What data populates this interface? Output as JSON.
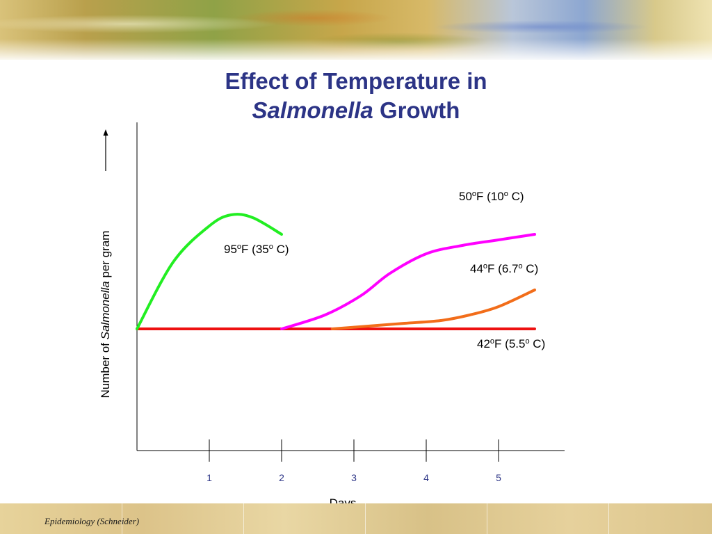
{
  "slide": {
    "title_line1": "Effect of Temperature in",
    "title_italic": "Salmonella",
    "title_rest": " Growth",
    "footer": "Epidemiology  (Schneider)"
  },
  "colors": {
    "title": "#2c3486",
    "tick_labels": "#2c3486"
  },
  "chart_data": {
    "type": "line",
    "title": "Effect of Temperature in Salmonella Growth",
    "xlabel": "Days",
    "ylabel_parts": [
      "Number of ",
      "Salmonella",
      " per gram"
    ],
    "ylabel": "Number of Salmonella per gram",
    "xlim": [
      0,
      6
    ],
    "ylim": [
      0,
      10
    ],
    "x_ticks": [
      1,
      2,
      3,
      4,
      5
    ],
    "x_tick_labels": [
      "1",
      "2",
      "3",
      "4",
      "5"
    ],
    "grid": false,
    "y_axis_arrow": true,
    "series": [
      {
        "name": "95°F (35° C)",
        "label_parts": [
          "95",
          "o",
          "F (35",
          "o",
          " C)"
        ],
        "color": "#22ee22",
        "x": [
          0,
          0.5,
          1.0,
          1.3,
          1.6,
          2.0
        ],
        "y": [
          5.0,
          7.4,
          8.7,
          9.1,
          9.0,
          8.4
        ]
      },
      {
        "name": "50°F (10° C)",
        "label_parts": [
          "50",
          "o",
          "F (10",
          "o",
          " C)"
        ],
        "color": "#ff00ff",
        "x": [
          2.0,
          2.6,
          3.1,
          3.5,
          4.0,
          4.5,
          5.0,
          5.5
        ],
        "y": [
          5.0,
          5.5,
          6.2,
          7.0,
          7.7,
          8.0,
          8.2,
          8.4
        ]
      },
      {
        "name": "44°F (6.7° C)",
        "label_parts": [
          "44",
          "o",
          "F (6.7",
          "o",
          " C)"
        ],
        "color": "#f26d1a",
        "x": [
          2.7,
          3.2,
          3.7,
          4.2,
          4.6,
          5.0,
          5.5
        ],
        "y": [
          5.0,
          5.1,
          5.2,
          5.3,
          5.5,
          5.8,
          6.4
        ]
      },
      {
        "name": "42°F (5.5° C)",
        "label_parts": [
          "42",
          "o",
          "F (5.5",
          "o",
          " C)"
        ],
        "color": "#ee1111",
        "x": [
          0,
          5.5
        ],
        "y": [
          5.0,
          5.0
        ]
      }
    ]
  }
}
